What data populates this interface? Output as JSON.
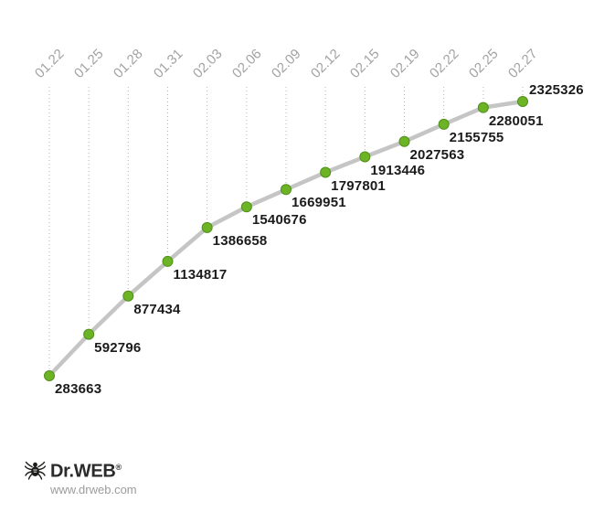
{
  "chart_data": {
    "type": "line",
    "title": "",
    "xlabel": "",
    "ylabel": "",
    "categories": [
      "01.22",
      "01.25",
      "01.28",
      "01.31",
      "02.03",
      "02.06",
      "02.09",
      "02.12",
      "02.15",
      "02.19",
      "02.22",
      "02.25",
      "02.27"
    ],
    "values": [
      283663,
      592796,
      877434,
      1134817,
      1386658,
      1540676,
      1669951,
      1797801,
      1913446,
      2027563,
      2155755,
      2280051,
      2325326
    ],
    "ylim": [
      283663,
      2325326
    ],
    "grid": "vertical-dotted",
    "legend": "none",
    "point_labels": "value-next-to-each-point"
  },
  "colors": {
    "dot_fill": "#6cb426",
    "dot_border": "#4f8f1a",
    "line": "#c5c5c5",
    "grid": "#b5b5b5",
    "tick_label": "#a2a2a2",
    "value_label": "#1b1b1b"
  },
  "branding": {
    "logo_text": "Dr.WEB",
    "registered": "®",
    "url": "www.drweb.com"
  }
}
